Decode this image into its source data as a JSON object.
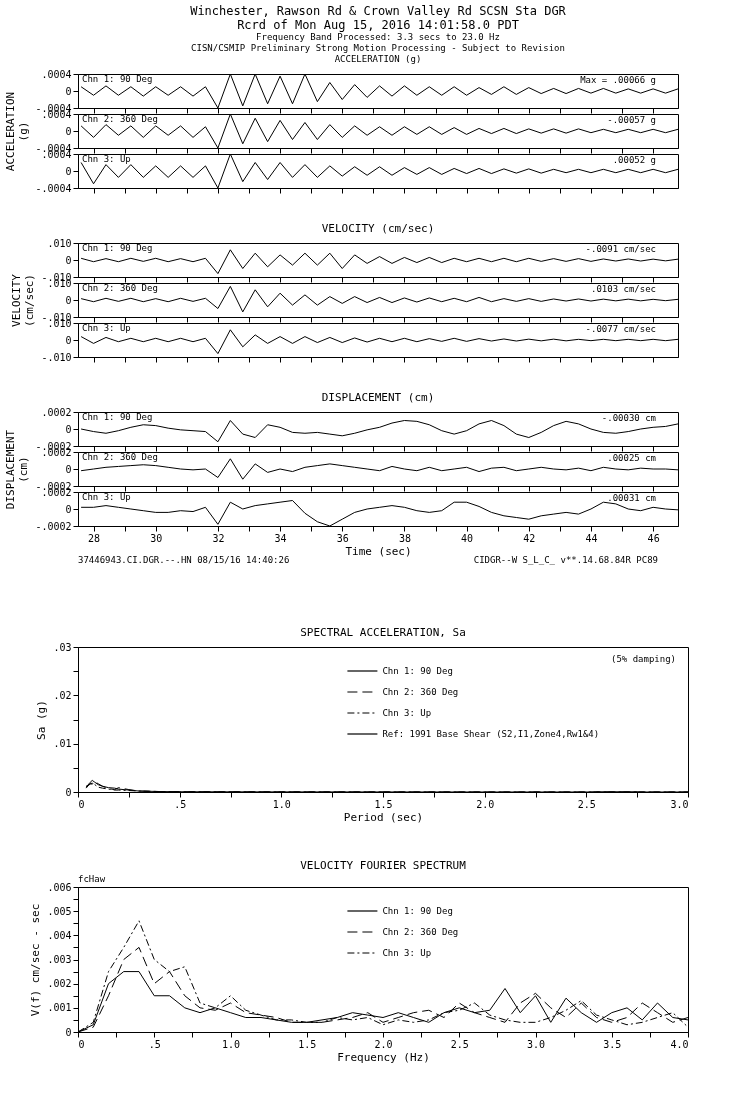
{
  "chart_data": [
    {
      "type": "line",
      "title": "Winchester, Rawson Rd & Crown Valley Rd    SCSN Sta DGR\nRcrd of Mon Aug 15, 2016 14:01:58.0 PDT",
      "subtitle": "Frequency Band Processed: 3.3 secs to 23.0 Hz\nCISN/CSMIP Preliminary Strong Motion Processing - Subject to Revision\nACCELERATION (g)",
      "color": "#000000",
      "tick_labels": "y",
      "xlim": [
        27.5,
        46.8
      ],
      "xticks": [
        28,
        {
          "value": 29,
          "label": null
        },
        30,
        {
          "value": 31,
          "label": null
        },
        32,
        {
          "value": 33,
          "label": null
        },
        34,
        {
          "value": 35,
          "label": null
        },
        36,
        {
          "value": 37,
          "label": null
        },
        38,
        {
          "value": 39,
          "label": null
        },
        40,
        {
          "value": 41,
          "label": null
        },
        42,
        {
          "value": 43,
          "label": null
        },
        44,
        {
          "value": 45,
          "label": null
        },
        46
      ],
      "ylim": [
        -0.0004,
        0.0004
      ],
      "yticks": [
        {
          "value": 0.0004,
          "label": ".0004"
        },
        0,
        {
          "value": -0.0004,
          "label": "-.0004"
        }
      ],
      "annotations": [
        "Chn 1: 90 Deg",
        "Max =  .00066   g"
      ],
      "x": [
        27.6,
        28.0,
        28.4,
        28.8,
        29.2,
        29.6,
        30.0,
        30.4,
        30.8,
        31.2,
        31.6,
        32.0,
        32.4,
        32.8,
        33.2,
        33.6,
        34.0,
        34.4,
        34.8,
        35.2,
        35.6,
        36.0,
        36.4,
        36.8,
        37.2,
        37.6,
        38.0,
        38.4,
        38.8,
        39.2,
        39.6,
        40.0,
        40.4,
        40.8,
        41.2,
        41.6,
        42.0,
        42.4,
        42.8,
        43.2,
        43.6,
        44.0,
        44.4,
        44.8,
        45.2,
        45.6,
        46.0,
        46.4,
        46.8
      ],
      "values": [
        0.0001,
        -0.0001,
        0.00012,
        -0.0001,
        0.0001,
        -0.00012,
        0.0001,
        -0.0001,
        0.0001,
        -0.00012,
        0.0001,
        -0.0004,
        0.0004,
        -0.00035,
        0.0004,
        -0.0003,
        0.00035,
        -0.0003,
        0.0004,
        -0.00025,
        0.0002,
        -0.0002,
        0.00015,
        -0.00015,
        0.00012,
        -0.00012,
        0.00012,
        -0.0001,
        0.0001,
        -0.0001,
        0.0001,
        -0.0001,
        8e-05,
        -8e-05,
        0.0001,
        -8e-05,
        8e-05,
        -6e-05,
        6e-05,
        -6e-05,
        6e-05,
        -5e-05,
        6e-05,
        -5e-05,
        5e-05,
        -5e-05,
        5e-05,
        -5e-05,
        5e-05
      ]
    },
    {
      "type": "line",
      "ylabel": "ACCELERATION\n(g)",
      "color": "#000000",
      "tick_labels": "y",
      "xlim": [
        27.5,
        46.8
      ],
      "xticks": [
        28,
        {
          "value": 29,
          "label": null
        },
        30,
        {
          "value": 31,
          "label": null
        },
        32,
        {
          "value": 33,
          "label": null
        },
        34,
        {
          "value": 35,
          "label": null
        },
        36,
        {
          "value": 37,
          "label": null
        },
        38,
        {
          "value": 39,
          "label": null
        },
        40,
        {
          "value": 41,
          "label": null
        },
        42,
        {
          "value": 43,
          "label": null
        },
        44,
        {
          "value": 45,
          "label": null
        },
        46
      ],
      "ylim": [
        -0.0004,
        0.0004
      ],
      "yticks": [
        {
          "value": 0.0004,
          "label": ".0004"
        },
        0,
        {
          "value": -0.0004,
          "label": "-.0004"
        }
      ],
      "annotations": [
        "Chn 2: 360 Deg",
        "-.00057   g"
      ],
      "x": [
        27.6,
        28.0,
        28.4,
        28.8,
        29.2,
        29.6,
        30.0,
        30.4,
        30.8,
        31.2,
        31.6,
        32.0,
        32.4,
        32.8,
        33.2,
        33.6,
        34.0,
        34.4,
        34.8,
        35.2,
        35.6,
        36.0,
        36.4,
        36.8,
        37.2,
        37.6,
        38.0,
        38.4,
        38.8,
        39.2,
        39.6,
        40.0,
        40.4,
        40.8,
        41.2,
        41.6,
        42.0,
        42.4,
        42.8,
        43.2,
        43.6,
        44.0,
        44.4,
        44.8,
        45.2,
        45.6,
        46.0,
        46.4,
        46.8
      ],
      "values": [
        0.00012,
        -0.00015,
        0.00015,
        -0.0001,
        0.00012,
        -0.00015,
        0.00012,
        -0.0001,
        0.00012,
        -0.00015,
        0.0001,
        -0.0004,
        0.0004,
        -0.0003,
        0.0003,
        -0.00025,
        0.00025,
        -0.0002,
        0.0002,
        -0.0002,
        0.00015,
        -0.00015,
        0.00012,
        -0.0001,
        0.0001,
        -0.0001,
        0.0001,
        -8e-05,
        0.0001,
        -8e-05,
        8e-05,
        -8e-05,
        6e-05,
        -6e-05,
        6e-05,
        -6e-05,
        5e-05,
        -5e-05,
        5e-05,
        -5e-05,
        5e-05,
        -4e-05,
        4e-05,
        -4e-05,
        4e-05,
        -4e-05,
        4e-05,
        -4e-05,
        4e-05
      ]
    },
    {
      "type": "line",
      "color": "#000000",
      "tick_labels": "y",
      "xlim": [
        27.5,
        46.8
      ],
      "xticks": [
        28,
        {
          "value": 29,
          "label": null
        },
        30,
        {
          "value": 31,
          "label": null
        },
        32,
        {
          "value": 33,
          "label": null
        },
        34,
        {
          "value": 35,
          "label": null
        },
        36,
        {
          "value": 37,
          "label": null
        },
        38,
        {
          "value": 39,
          "label": null
        },
        40,
        {
          "value": 41,
          "label": null
        },
        42,
        {
          "value": 43,
          "label": null
        },
        44,
        {
          "value": 45,
          "label": null
        },
        46
      ],
      "ylim": [
        -0.0004,
        0.0004
      ],
      "yticks": [
        {
          "value": 0.0004,
          "label": ".0004"
        },
        0,
        {
          "value": -0.0004,
          "label": "-.0004"
        }
      ],
      "annotations": [
        "Chn 3: Up",
        ".00052   g"
      ],
      "x": [
        27.6,
        28.0,
        28.4,
        28.8,
        29.2,
        29.6,
        30.0,
        30.4,
        30.8,
        31.2,
        31.6,
        32.0,
        32.4,
        32.8,
        33.2,
        33.6,
        34.0,
        34.4,
        34.8,
        35.2,
        35.6,
        36.0,
        36.4,
        36.8,
        37.2,
        37.6,
        38.0,
        38.4,
        38.8,
        39.2,
        39.6,
        40.0,
        40.4,
        40.8,
        41.2,
        41.6,
        42.0,
        42.4,
        42.8,
        43.2,
        43.6,
        44.0,
        44.4,
        44.8,
        45.2,
        45.6,
        46.0,
        46.4,
        46.8
      ],
      "values": [
        0.0002,
        -0.0003,
        0.00015,
        -0.00015,
        0.00015,
        -0.00015,
        0.00012,
        -0.00015,
        0.00012,
        -0.00015,
        0.00012,
        -0.0004,
        0.0004,
        -0.00025,
        0.0002,
        -0.0002,
        0.0002,
        -0.00015,
        0.00015,
        -0.00015,
        0.00012,
        -0.00012,
        0.0001,
        -0.0001,
        0.0001,
        -0.0001,
        8e-05,
        -8e-05,
        8e-05,
        -8e-05,
        6e-05,
        -6e-05,
        6e-05,
        -6e-05,
        5e-05,
        -5e-05,
        5e-05,
        -5e-05,
        4e-05,
        -4e-05,
        4e-05,
        -4e-05,
        4e-05,
        -4e-05,
        4e-05,
        -4e-05,
        4e-05,
        -4e-05,
        4e-05
      ]
    },
    {
      "type": "line",
      "title": "VELOCITY (cm/sec)",
      "color": "#000000",
      "tick_labels": "y",
      "xlim": [
        27.5,
        46.8
      ],
      "xticks": [
        28,
        {
          "value": 29,
          "label": null
        },
        30,
        {
          "value": 31,
          "label": null
        },
        32,
        {
          "value": 33,
          "label": null
        },
        34,
        {
          "value": 35,
          "label": null
        },
        36,
        {
          "value": 37,
          "label": null
        },
        38,
        {
          "value": 39,
          "label": null
        },
        40,
        {
          "value": 41,
          "label": null
        },
        42,
        {
          "value": 43,
          "label": null
        },
        44,
        {
          "value": 45,
          "label": null
        },
        46
      ],
      "ylim": [
        -0.01,
        0.01
      ],
      "yticks": [
        {
          "value": 0.01,
          "label": ".010"
        },
        0,
        {
          "value": -0.01,
          "label": "-.010"
        }
      ],
      "annotations": [
        "Chn 1: 90 Deg",
        "-.0091   cm/sec"
      ],
      "x": [
        27.6,
        28.0,
        28.4,
        28.8,
        29.2,
        29.6,
        30.0,
        30.4,
        30.8,
        31.2,
        31.6,
        32.0,
        32.4,
        32.8,
        33.2,
        33.6,
        34.0,
        34.4,
        34.8,
        35.2,
        35.6,
        36.0,
        36.4,
        36.8,
        37.2,
        37.6,
        38.0,
        38.4,
        38.8,
        39.2,
        39.6,
        40.0,
        40.4,
        40.8,
        41.2,
        41.6,
        42.0,
        42.4,
        42.8,
        43.2,
        43.6,
        44.0,
        44.4,
        44.8,
        45.2,
        45.6,
        46.0,
        46.4,
        46.8
      ],
      "values": [
        0.001,
        -0.001,
        0.0008,
        -0.001,
        0.001,
        -0.0008,
        0.001,
        -0.001,
        0.0008,
        -0.001,
        0.001,
        -0.008,
        0.006,
        -0.005,
        0.004,
        -0.004,
        0.003,
        -0.003,
        0.004,
        -0.003,
        0.004,
        -0.005,
        0.003,
        -0.002,
        0.002,
        -0.002,
        0.0015,
        -0.0015,
        0.0015,
        -0.0015,
        0.001,
        -0.001,
        0.001,
        -0.001,
        0.001,
        -0.001,
        0.001,
        -0.0008,
        0.0008,
        -0.0008,
        0.0008,
        -0.0008,
        0.0006,
        -0.0006,
        0.0006,
        -0.0006,
        0.0005,
        -0.0005,
        0.0005
      ]
    },
    {
      "type": "line",
      "ylabel": "VELOCITY\n(cm/sec)",
      "color": "#000000",
      "tick_labels": "y",
      "xlim": [
        27.5,
        46.8
      ],
      "xticks": [
        28,
        {
          "value": 29,
          "label": null
        },
        30,
        {
          "value": 31,
          "label": null
        },
        32,
        {
          "value": 33,
          "label": null
        },
        34,
        {
          "value": 35,
          "label": null
        },
        36,
        {
          "value": 37,
          "label": null
        },
        38,
        {
          "value": 39,
          "label": null
        },
        40,
        {
          "value": 41,
          "label": null
        },
        42,
        {
          "value": 43,
          "label": null
        },
        44,
        {
          "value": 45,
          "label": null
        },
        46
      ],
      "ylim": [
        -0.01,
        0.01
      ],
      "yticks": [
        {
          "value": 0.01,
          "label": ".010"
        },
        0,
        {
          "value": -0.01,
          "label": "-.010"
        }
      ],
      "annotations": [
        "Chn 2: 360 Deg",
        ".0103   cm/sec"
      ],
      "x": [
        27.6,
        28.0,
        28.4,
        28.8,
        29.2,
        29.6,
        30.0,
        30.4,
        30.8,
        31.2,
        31.6,
        32.0,
        32.4,
        32.8,
        33.2,
        33.6,
        34.0,
        34.4,
        34.8,
        35.2,
        35.6,
        36.0,
        36.4,
        36.8,
        37.2,
        37.6,
        38.0,
        38.4,
        38.8,
        39.2,
        39.6,
        40.0,
        40.4,
        40.8,
        41.2,
        41.6,
        42.0,
        42.4,
        42.8,
        43.2,
        43.6,
        44.0,
        44.4,
        44.8,
        45.2,
        45.6,
        46.0,
        46.4,
        46.8
      ],
      "values": [
        0.0008,
        -0.001,
        0.001,
        -0.0008,
        0.001,
        -0.001,
        0.0008,
        -0.001,
        0.001,
        -0.0008,
        0.001,
        -0.005,
        0.008,
        -0.007,
        0.006,
        -0.004,
        0.004,
        -0.003,
        0.003,
        -0.003,
        0.002,
        -0.002,
        0.002,
        -0.0015,
        0.0015,
        -0.0015,
        0.0012,
        -0.0012,
        0.0012,
        -0.001,
        0.001,
        -0.001,
        0.0015,
        -0.001,
        0.0008,
        -0.0008,
        0.0008,
        -0.0008,
        0.0006,
        -0.0006,
        0.0006,
        -0.0006,
        0.0005,
        -0.0005,
        0.0005,
        -0.0005,
        0.0004,
        -0.0004,
        0.0004
      ]
    },
    {
      "type": "line",
      "color": "#000000",
      "tick_labels": "y",
      "xlim": [
        27.5,
        46.8
      ],
      "xticks": [
        28,
        {
          "value": 29,
          "label": null
        },
        30,
        {
          "value": 31,
          "label": null
        },
        32,
        {
          "value": 33,
          "label": null
        },
        34,
        {
          "value": 35,
          "label": null
        },
        36,
        {
          "value": 37,
          "label": null
        },
        38,
        {
          "value": 39,
          "label": null
        },
        40,
        {
          "value": 41,
          "label": null
        },
        42,
        {
          "value": 43,
          "label": null
        },
        44,
        {
          "value": 45,
          "label": null
        },
        46
      ],
      "ylim": [
        -0.01,
        0.01
      ],
      "yticks": [
        {
          "value": 0.01,
          "label": ".010"
        },
        0,
        {
          "value": -0.01,
          "label": "-.010"
        }
      ],
      "annotations": [
        "Chn 3: Up",
        "-.0077   cm/sec"
      ],
      "x": [
        27.6,
        28.0,
        28.4,
        28.8,
        29.2,
        29.6,
        30.0,
        30.4,
        30.8,
        31.2,
        31.6,
        32.0,
        32.4,
        32.8,
        33.2,
        33.6,
        34.0,
        34.4,
        34.8,
        35.2,
        35.6,
        36.0,
        36.4,
        36.8,
        37.2,
        37.6,
        38.0,
        38.4,
        38.8,
        39.2,
        39.6,
        40.0,
        40.4,
        40.8,
        41.2,
        41.6,
        42.0,
        42.4,
        42.8,
        43.2,
        43.6,
        44.0,
        44.4,
        44.8,
        45.2,
        45.6,
        46.0,
        46.4,
        46.8
      ],
      "values": [
        0.002,
        -0.002,
        0.0015,
        -0.001,
        0.001,
        -0.001,
        0.001,
        -0.001,
        0.001,
        -0.001,
        0.001,
        -0.008,
        0.006,
        -0.004,
        0.003,
        -0.002,
        0.002,
        -0.002,
        0.002,
        -0.0015,
        0.0015,
        -0.0015,
        0.0012,
        -0.0012,
        0.001,
        -0.001,
        0.001,
        -0.001,
        0.0008,
        -0.0008,
        0.001,
        -0.0008,
        0.0008,
        -0.0006,
        0.0006,
        -0.0006,
        0.0005,
        -0.0005,
        0.0005,
        -0.0005,
        0.0004,
        -0.0004,
        0.0004,
        -0.0004,
        0.0004,
        -0.0004,
        0.0004,
        -0.0004,
        0.0004
      ]
    },
    {
      "type": "line",
      "title": "DISPLACEMENT (cm)",
      "color": "#000000",
      "tick_labels": "y",
      "xlim": [
        27.5,
        46.8
      ],
      "xticks": [
        28,
        {
          "value": 29,
          "label": null
        },
        30,
        {
          "value": 31,
          "label": null
        },
        32,
        {
          "value": 33,
          "label": null
        },
        34,
        {
          "value": 35,
          "label": null
        },
        36,
        {
          "value": 37,
          "label": null
        },
        38,
        {
          "value": 39,
          "label": null
        },
        40,
        {
          "value": 41,
          "label": null
        },
        42,
        {
          "value": 43,
          "label": null
        },
        44,
        {
          "value": 45,
          "label": null
        },
        46
      ],
      "ylim": [
        -0.0002,
        0.0002
      ],
      "yticks": [
        {
          "value": 0.0002,
          "label": ".0002"
        },
        0,
        {
          "value": -0.0002,
          "label": "-.0002"
        }
      ],
      "annotations": [
        "Chn 1: 90 Deg",
        "-.00030   cm"
      ],
      "x": [
        27.6,
        28.0,
        28.4,
        28.8,
        29.2,
        29.6,
        30.0,
        30.4,
        30.8,
        31.2,
        31.6,
        32.0,
        32.4,
        32.8,
        33.2,
        33.6,
        34.0,
        34.4,
        34.8,
        35.2,
        35.6,
        36.0,
        36.4,
        36.8,
        37.2,
        37.6,
        38.0,
        38.4,
        38.8,
        39.2,
        39.6,
        40.0,
        40.4,
        40.8,
        41.2,
        41.6,
        42.0,
        42.4,
        42.8,
        43.2,
        43.6,
        44.0,
        44.4,
        44.8,
        45.2,
        45.6,
        46.0,
        46.4,
        46.8
      ],
      "values": [
        0,
        -3e-05,
        -5e-05,
        -2e-05,
        2e-05,
        5e-05,
        4e-05,
        1e-05,
        -1e-05,
        -2e-05,
        -3e-05,
        -0.00015,
        0.0001,
        -6e-05,
        -0.0001,
        5e-05,
        2e-05,
        -4e-05,
        -5e-05,
        -4e-05,
        -6e-05,
        -8e-05,
        -5e-05,
        -1e-05,
        2e-05,
        7e-05,
        0.0001,
        9e-05,
        5e-05,
        -2e-05,
        -6e-05,
        -2e-05,
        6e-05,
        0.0001,
        4e-05,
        -6e-05,
        -0.0001,
        -4e-05,
        4e-05,
        9e-05,
        6e-05,
        0,
        -4e-05,
        -5e-05,
        -3e-05,
        0,
        2e-05,
        3e-05,
        6e-05
      ]
    },
    {
      "type": "line",
      "ylabel": "DISPLACEMENT\n(cm)",
      "color": "#000000",
      "tick_labels": "y",
      "xlim": [
        27.5,
        46.8
      ],
      "xticks": [
        28,
        {
          "value": 29,
          "label": null
        },
        30,
        {
          "value": 31,
          "label": null
        },
        32,
        {
          "value": 33,
          "label": null
        },
        34,
        {
          "value": 35,
          "label": null
        },
        36,
        {
          "value": 37,
          "label": null
        },
        38,
        {
          "value": 39,
          "label": null
        },
        40,
        {
          "value": 41,
          "label": null
        },
        42,
        {
          "value": 43,
          "label": null
        },
        44,
        {
          "value": 45,
          "label": null
        },
        46
      ],
      "ylim": [
        -0.0002,
        0.0002
      ],
      "yticks": [
        {
          "value": 0.0002,
          "label": ".0002"
        },
        0,
        {
          "value": -0.0002,
          "label": "-.0002"
        }
      ],
      "annotations": [
        "Chn 2: 360 Deg",
        ".00025   cm"
      ],
      "x": [
        27.6,
        28.0,
        28.4,
        28.8,
        29.2,
        29.6,
        30.0,
        30.4,
        30.8,
        31.2,
        31.6,
        32.0,
        32.4,
        32.8,
        33.2,
        33.6,
        34.0,
        34.4,
        34.8,
        35.2,
        35.6,
        36.0,
        36.4,
        36.8,
        37.2,
        37.6,
        38.0,
        38.4,
        38.8,
        39.2,
        39.6,
        40.0,
        40.4,
        40.8,
        41.2,
        41.6,
        42.0,
        42.4,
        42.8,
        43.2,
        43.6,
        44.0,
        44.4,
        44.8,
        45.2,
        45.6,
        46.0,
        46.4,
        46.8
      ],
      "values": [
        -2e-05,
        0,
        2e-05,
        3e-05,
        4e-05,
        5e-05,
        4e-05,
        2e-05,
        0,
        -1e-05,
        0,
        -0.0001,
        0.00012,
        -0.00012,
        6e-05,
        -4e-05,
        0,
        -3e-05,
        2e-05,
        4e-05,
        6e-05,
        4e-05,
        2e-05,
        0,
        -2e-05,
        3e-05,
        0,
        -2e-05,
        2e-05,
        -2e-05,
        0,
        2e-05,
        -3e-05,
        1e-05,
        2e-05,
        -2e-05,
        0,
        2e-05,
        0,
        -1e-05,
        1e-05,
        -2e-05,
        2e-05,
        0,
        -1e-05,
        1e-05,
        0,
        0,
        -1e-05
      ]
    },
    {
      "type": "line",
      "xlabel": "Time (sec)",
      "color": "#000000",
      "xlim": [
        27.5,
        46.8
      ],
      "xticks": [
        28,
        {
          "value": 29,
          "label": null
        },
        30,
        {
          "value": 31,
          "label": null
        },
        32,
        {
          "value": 33,
          "label": null
        },
        34,
        {
          "value": 35,
          "label": null
        },
        36,
        {
          "value": 37,
          "label": null
        },
        38,
        {
          "value": 39,
          "label": null
        },
        40,
        {
          "value": 41,
          "label": null
        },
        42,
        {
          "value": 43,
          "label": null
        },
        44,
        {
          "value": 45,
          "label": null
        },
        46
      ],
      "ylim": [
        -0.0002,
        0.0002
      ],
      "yticks": [
        {
          "value": 0.0002,
          "label": ".0002"
        },
        0,
        {
          "value": -0.0002,
          "label": "-.0002"
        }
      ],
      "annotations": [
        "Chn 3: Up",
        ".00031   cm",
        "37446943.CI.DGR.--.HN 08/15/16 14:40:26",
        "CIDGR--W  S_L_C_  v**.14.68.84R PC89"
      ],
      "x": [
        27.6,
        28.0,
        28.4,
        28.8,
        29.2,
        29.6,
        30.0,
        30.4,
        30.8,
        31.2,
        31.6,
        32.0,
        32.4,
        32.8,
        33.2,
        33.6,
        34.0,
        34.4,
        34.8,
        35.2,
        35.6,
        36.0,
        36.4,
        36.8,
        37.2,
        37.6,
        38.0,
        38.4,
        38.8,
        39.2,
        39.6,
        40.0,
        40.4,
        40.8,
        41.2,
        41.6,
        42.0,
        42.4,
        42.8,
        43.2,
        43.6,
        44.0,
        44.4,
        44.8,
        45.2,
        45.6,
        46.0,
        46.4,
        46.8
      ],
      "values": [
        2e-05,
        2e-05,
        4e-05,
        2e-05,
        0,
        -2e-05,
        -4e-05,
        -4e-05,
        -2e-05,
        -3e-05,
        2e-05,
        -0.00018,
        8e-05,
        0,
        4e-05,
        6e-05,
        8e-05,
        0.0001,
        -5e-05,
        -0.00015,
        -0.0002,
        -0.00012,
        -4e-05,
        0,
        2e-05,
        4e-05,
        2e-05,
        -2e-05,
        -4e-05,
        -2e-05,
        8e-05,
        8e-05,
        3e-05,
        -4e-05,
        -8e-05,
        -0.0001,
        -0.00012,
        -8e-05,
        -6e-05,
        -4e-05,
        -6e-05,
        0,
        8e-05,
        6e-05,
        0,
        -2e-05,
        2e-05,
        0,
        -1e-05
      ]
    },
    {
      "type": "line",
      "title": "SPECTRAL ACCELERATION, Sa",
      "xlabel": "Period (sec)",
      "ylabel": "Sa (g)",
      "legend": "top",
      "xlim": [
        0,
        3
      ],
      "xticks": [
        0,
        {
          "value": 0.25,
          "label": null
        },
        {
          "value": 0.5,
          "label": ".5"
        },
        {
          "value": 0.75,
          "label": null
        },
        {
          "value": 1,
          "label": "1.0"
        },
        {
          "value": 1.25,
          "label": null
        },
        {
          "value": 1.5,
          "label": "1.5"
        },
        {
          "value": 1.75,
          "label": null
        },
        {
          "value": 2,
          "label": "2.0"
        },
        {
          "value": 2.25,
          "label": null
        },
        {
          "value": 2.5,
          "label": "2.5"
        },
        {
          "value": 2.75,
          "label": null
        },
        {
          "value": 3,
          "label": "3.0"
        }
      ],
      "ylim": [
        0,
        0.03
      ],
      "yticks": [
        0,
        {
          "value": 0.005,
          "label": null
        },
        {
          "value": 0.01,
          "label": ".01"
        },
        {
          "value": 0.015,
          "label": null
        },
        {
          "value": 0.02,
          "label": ".02"
        },
        {
          "value": 0.025,
          "label": null
        },
        {
          "value": 0.03,
          "label": ".03"
        }
      ],
      "annotations": [
        "(5% damping)"
      ],
      "x": [
        0.04,
        0.06,
        0.07,
        0.08,
        0.1,
        0.12,
        0.15,
        0.18,
        0.2,
        0.25,
        0.3,
        0.4,
        0.5,
        1.0,
        2.0,
        3.0
      ],
      "series": [
        {
          "name": "Chn 1: 90 Deg",
          "color": "#000000",
          "line_style": "solid",
          "values": [
            0.001,
            0.002,
            0.0024,
            0.0021,
            0.0015,
            0.0012,
            0.0009,
            0.0008,
            0.0006,
            0.0004,
            0.0002,
            0.0001,
            5e-05,
            2e-05,
            0,
            0
          ]
        },
        {
          "name": "Chn 2: 360 Deg",
          "color": "#000000",
          "line_style": "dashed",
          "values": [
            0.0008,
            0.0018,
            0.0016,
            0.0022,
            0.0017,
            0.0012,
            0.0007,
            0.0005,
            0.0009,
            0.0005,
            0.0002,
            0.0001,
            5e-05,
            2e-05,
            0,
            0
          ]
        },
        {
          "name": "Chn 3: Up",
          "color": "#000000",
          "line_style": "dotted",
          "values": [
            0.0012,
            0.0016,
            0.0019,
            0.0016,
            0.001,
            0.0008,
            0.0006,
            0.0004,
            0.0004,
            0.0003,
            0.0002,
            0.0001,
            5e-05,
            2e-05,
            0,
            0
          ]
        },
        {
          "name": "Ref: 1991 Base Shear (S2,I1,Zone4,Rw1&4)",
          "color": "#000000",
          "line_style": "solid",
          "x": [
            2.55,
            2.75
          ],
          "values": [
            0,
            0
          ]
        }
      ]
    },
    {
      "type": "line",
      "title": "VELOCITY FOURIER SPECTRUM",
      "xlabel": "Frequency (Hz)",
      "ylabel": "V(f)   cm/sec - sec",
      "legend": "top",
      "xlim": [
        0,
        4
      ],
      "xticks": [
        0,
        {
          "value": 0.25,
          "label": null
        },
        {
          "value": 0.5,
          "label": ".5"
        },
        {
          "value": 0.75,
          "label": null
        },
        {
          "value": 1,
          "label": "1.0"
        },
        {
          "value": 1.25,
          "label": null
        },
        {
          "value": 1.5,
          "label": "1.5"
        },
        {
          "value": 1.75,
          "label": null
        },
        {
          "value": 2,
          "label": "2.0"
        },
        {
          "value": 2.25,
          "label": null
        },
        {
          "value": 2.5,
          "label": "2.5"
        },
        {
          "value": 2.75,
          "label": null
        },
        {
          "value": 3,
          "label": "3.0"
        },
        {
          "value": 3.25,
          "label": null
        },
        {
          "value": 3.5,
          "label": "3.5"
        },
        {
          "value": 3.75,
          "label": null
        },
        {
          "value": 4,
          "label": "4.0"
        }
      ],
      "ylim": [
        0,
        0.006
      ],
      "yticks": [
        0,
        {
          "value": 0.0005,
          "label": null
        },
        {
          "value": 0.001,
          "label": ".001"
        },
        {
          "value": 0.0015,
          "label": null
        },
        {
          "value": 0.002,
          "label": ".002"
        },
        {
          "value": 0.0025,
          "label": null
        },
        {
          "value": 0.003,
          "label": ".003"
        },
        {
          "value": 0.0035,
          "label": null
        },
        {
          "value": 0.004,
          "label": ".004"
        },
        {
          "value": 0.0045,
          "label": null
        },
        {
          "value": 0.005,
          "label": ".005"
        },
        {
          "value": 0.0055,
          "label": null
        },
        {
          "value": 0.006,
          "label": ".006"
        }
      ],
      "annotations": [
        "fcHaw"
      ],
      "x": [
        0,
        0.1,
        0.2,
        0.3,
        0.4,
        0.5,
        0.6,
        0.7,
        0.8,
        0.9,
        1.0,
        1.1,
        1.2,
        1.3,
        1.4,
        1.5,
        1.6,
        1.7,
        1.8,
        1.9,
        2.0,
        2.1,
        2.2,
        2.3,
        2.4,
        2.5,
        2.6,
        2.7,
        2.8,
        2.9,
        3.0,
        3.1,
        3.2,
        3.3,
        3.4,
        3.5,
        3.6,
        3.7,
        3.8,
        3.9,
        4.0
      ],
      "series": [
        {
          "name": "Chn 1: 90 Deg",
          "color": "#000000",
          "line_style": "solid",
          "values": [
            0,
            0.0003,
            0.002,
            0.0025,
            0.0025,
            0.0015,
            0.0015,
            0.001,
            0.0008,
            0.001,
            0.0008,
            0.0006,
            0.0006,
            0.0005,
            0.0004,
            0.0004,
            0.0005,
            0.0006,
            0.0008,
            0.0007,
            0.0006,
            0.0008,
            0.0006,
            0.0004,
            0.0008,
            0.001,
            0.0008,
            0.0009,
            0.0018,
            0.0008,
            0.0015,
            0.0004,
            0.0014,
            0.0008,
            0.0004,
            0.0008,
            0.001,
            0.0005,
            0.0012,
            0.0006,
            0.0005
          ]
        },
        {
          "name": "Chn 2: 360 Deg",
          "color": "#000000",
          "line_style": "dashed",
          "values": [
            0,
            0.0002,
            0.0015,
            0.003,
            0.0035,
            0.002,
            0.0025,
            0.0015,
            0.001,
            0.0009,
            0.0012,
            0.0008,
            0.0007,
            0.0006,
            0.0004,
            0.0004,
            0.0004,
            0.0005,
            0.0006,
            0.0008,
            0.0004,
            0.0006,
            0.0008,
            0.0009,
            0.0006,
            0.0012,
            0.0008,
            0.0006,
            0.0004,
            0.0012,
            0.0016,
            0.001,
            0.0006,
            0.0012,
            0.0006,
            0.0004,
            0.0006,
            0.0012,
            0.0008,
            0.0004,
            0.0006
          ]
        },
        {
          "name": "Chn 3: Up",
          "color": "#000000",
          "line_style": "dotted",
          "values": [
            0,
            0.0004,
            0.0025,
            0.0035,
            0.0046,
            0.003,
            0.0025,
            0.0027,
            0.0012,
            0.001,
            0.0015,
            0.0009,
            0.0007,
            0.0005,
            0.0005,
            0.0004,
            0.0004,
            0.0006,
            0.0005,
            0.0006,
            0.0003,
            0.0005,
            0.0004,
            0.0005,
            0.0008,
            0.0009,
            0.0012,
            0.0007,
            0.0005,
            0.0004,
            0.0004,
            0.0006,
            0.0009,
            0.0013,
            0.0007,
            0.0005,
            0.0003,
            0.0004,
            0.0006,
            0.0008,
            0.0002
          ]
        }
      ]
    }
  ]
}
